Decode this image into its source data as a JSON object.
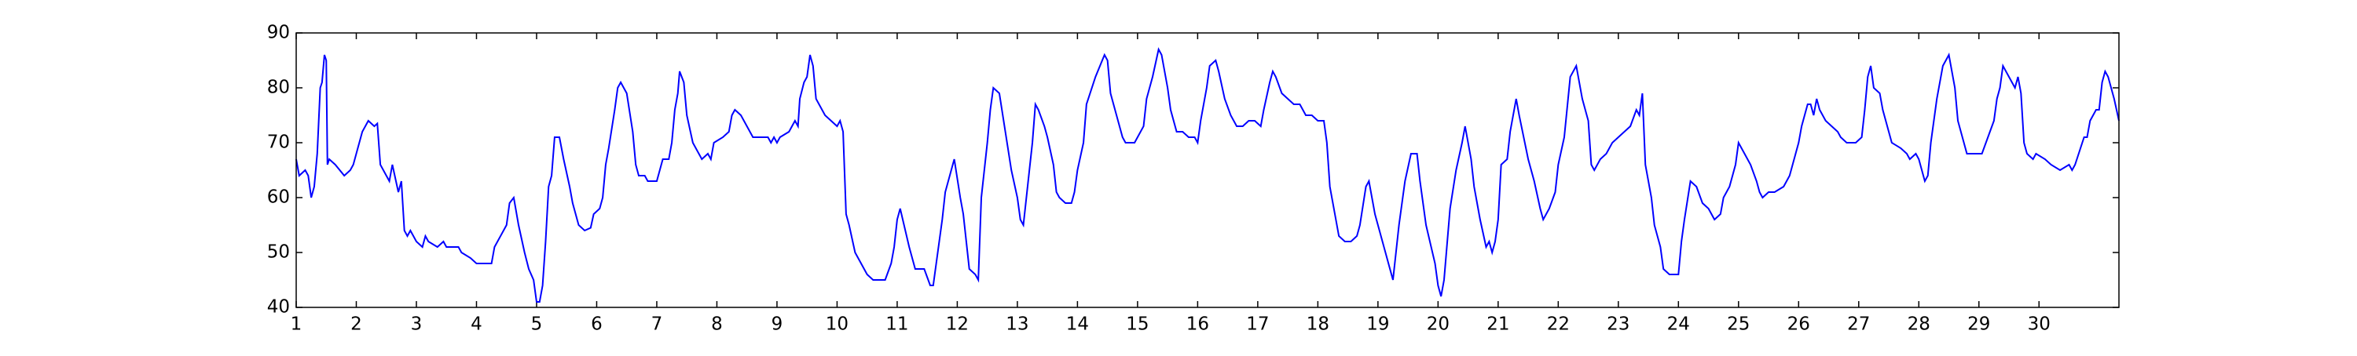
{
  "chart_data": {
    "type": "line",
    "color": "#0000ff",
    "xlim": [
      1,
      31.33
    ],
    "ylim": [
      40,
      90
    ],
    "xticks": [
      1,
      2,
      3,
      4,
      5,
      6,
      7,
      8,
      9,
      10,
      11,
      12,
      13,
      14,
      15,
      16,
      17,
      18,
      19,
      20,
      21,
      22,
      23,
      24,
      25,
      26,
      27,
      28,
      29,
      30
    ],
    "yticks": [
      40,
      50,
      60,
      70,
      80,
      90
    ],
    "x": [
      1.0,
      1.05,
      1.15,
      1.2,
      1.25,
      1.3,
      1.35,
      1.4,
      1.43,
      1.47,
      1.5,
      1.52,
      1.55,
      1.65,
      1.8,
      1.9,
      1.95,
      2.0,
      2.1,
      2.2,
      2.3,
      2.35,
      2.4,
      2.5,
      2.55,
      2.6,
      2.7,
      2.75,
      2.8,
      2.85,
      2.9,
      3.0,
      3.1,
      3.15,
      3.2,
      3.35,
      3.45,
      3.5,
      3.7,
      3.75,
      3.9,
      4.0,
      4.2,
      4.25,
      4.3,
      4.35,
      4.5,
      4.55,
      4.62,
      4.7,
      4.8,
      4.87,
      4.95,
      5.0,
      5.05,
      5.1,
      5.15,
      5.2,
      5.25,
      5.3,
      5.38,
      5.45,
      5.55,
      5.6,
      5.7,
      5.8,
      5.9,
      5.95,
      6.05,
      6.1,
      6.15,
      6.2,
      6.3,
      6.35,
      6.4,
      6.5,
      6.6,
      6.65,
      6.7,
      6.8,
      6.85,
      7.0,
      7.05,
      7.1,
      7.2,
      7.25,
      7.3,
      7.35,
      7.38,
      7.45,
      7.5,
      7.6,
      7.65,
      7.75,
      7.85,
      7.9,
      7.95,
      8.1,
      8.2,
      8.25,
      8.3,
      8.4,
      8.5,
      8.6,
      8.75,
      8.85,
      8.9,
      8.95,
      9.0,
      9.05,
      9.2,
      9.3,
      9.35,
      9.38,
      9.45,
      9.5,
      9.55,
      9.6,
      9.65,
      9.7,
      9.8,
      9.9,
      10.0,
      10.05,
      10.1,
      10.15,
      10.2,
      10.3,
      10.35,
      10.45,
      10.5,
      10.6,
      10.8,
      10.9,
      10.95,
      11.0,
      11.05,
      11.2,
      11.3,
      11.45,
      11.55,
      11.6,
      11.65,
      11.75,
      11.8,
      11.9,
      11.95,
      12.05,
      12.1,
      12.15,
      12.2,
      12.3,
      12.35,
      12.4,
      12.5,
      12.55,
      12.6,
      12.7,
      12.8,
      12.9,
      13.0,
      13.05,
      13.1,
      13.15,
      13.2,
      13.25,
      13.3,
      13.35,
      13.45,
      13.5,
      13.6,
      13.65,
      13.7,
      13.8,
      13.9,
      13.95,
      14.0,
      14.1,
      14.15,
      14.3,
      14.45,
      14.5,
      14.55,
      14.65,
      14.75,
      14.8,
      14.95,
      15.0,
      15.1,
      15.15,
      15.25,
      15.35,
      15.4,
      15.5,
      15.55,
      15.65,
      15.75,
      15.85,
      15.95,
      16.0,
      16.05,
      16.15,
      16.2,
      16.3,
      16.35,
      16.45,
      16.55,
      16.65,
      16.75,
      16.85,
      16.95,
      17.05,
      17.1,
      17.2,
      17.25,
      17.3,
      17.4,
      17.5,
      17.6,
      17.7,
      17.8,
      17.9,
      18.0,
      18.1,
      18.15,
      18.2,
      18.3,
      18.35,
      18.45,
      18.55,
      18.65,
      18.7,
      18.8,
      18.85,
      18.95,
      19.0,
      19.1,
      19.2,
      19.25,
      19.35,
      19.45,
      19.55,
      19.65,
      19.7,
      19.8,
      19.95,
      20.0,
      20.05,
      20.1,
      20.2,
      20.3,
      20.4,
      20.45,
      20.55,
      20.6,
      20.7,
      20.8,
      20.85,
      20.9,
      20.95,
      21.0,
      21.05,
      21.15,
      21.2,
      21.3,
      21.35,
      21.5,
      21.6,
      21.7,
      21.75,
      21.85,
      21.95,
      22.0,
      22.1,
      22.2,
      22.3,
      22.4,
      22.5,
      22.55,
      22.6,
      22.7,
      22.8,
      22.9,
      23.0,
      23.1,
      23.2,
      23.3,
      23.35,
      23.4,
      23.45,
      23.55,
      23.6,
      23.7,
      23.75,
      23.85,
      24.0,
      24.05,
      24.1,
      24.2,
      24.3,
      24.4,
      24.5,
      24.6,
      24.7,
      24.75,
      24.85,
      24.95,
      25.0,
      25.1,
      25.2,
      25.3,
      25.35,
      25.4,
      25.5,
      25.6,
      25.75,
      25.85,
      25.9,
      26.0,
      26.05,
      26.15,
      26.2,
      26.25,
      26.3,
      26.35,
      26.45,
      26.55,
      26.65,
      26.7,
      26.8,
      26.95,
      27.05,
      27.1,
      27.15,
      27.2,
      27.25,
      27.35,
      27.4,
      27.5,
      27.55,
      27.7,
      27.8,
      27.85,
      27.95,
      28.0,
      28.1,
      28.15,
      28.2,
      28.3,
      28.4,
      28.5,
      28.6,
      28.65,
      28.75,
      28.8,
      28.9,
      29.05,
      29.15,
      29.25,
      29.3,
      29.35,
      29.4,
      29.5,
      29.6,
      29.65,
      29.7,
      29.75,
      29.8,
      29.9,
      29.95,
      30.1,
      30.2,
      30.35,
      30.5,
      30.55,
      30.6,
      30.75,
      30.8,
      30.85,
      30.95,
      31.0,
      31.05,
      31.1,
      31.15,
      31.25,
      31.33
    ],
    "values": [
      67,
      64,
      65,
      64,
      60,
      62,
      68,
      80,
      81,
      86,
      85,
      66,
      67,
      66,
      64,
      65,
      66,
      68,
      72,
      74,
      73,
      73.5,
      66,
      64,
      63,
      66,
      61,
      63,
      54,
      53,
      54,
      52,
      51,
      53,
      52,
      51,
      52,
      51,
      51,
      50,
      49,
      48,
      48,
      48,
      51,
      52,
      55,
      59,
      60,
      55,
      50,
      47,
      45,
      41,
      41,
      44,
      52,
      62,
      64,
      71,
      71,
      67,
      62,
      59,
      55,
      54,
      54.5,
      57,
      58,
      60,
      66,
      69,
      76,
      80,
      81,
      79,
      72,
      66,
      64,
      64,
      63,
      63,
      65,
      67,
      67,
      70,
      76,
      79,
      83,
      81,
      75,
      70,
      69,
      67,
      68,
      67,
      70,
      71,
      72,
      75,
      76,
      75,
      73,
      71,
      71,
      71,
      70,
      71,
      70,
      71,
      72,
      74,
      73,
      78,
      81,
      82,
      86,
      84,
      78,
      77,
      75,
      74,
      73,
      74,
      72,
      57,
      55,
      50,
      49,
      47,
      46,
      45,
      45,
      48,
      51,
      56,
      58,
      51,
      47,
      47,
      44,
      44,
      48,
      56,
      61,
      65,
      67,
      60,
      57,
      52,
      47,
      46,
      45,
      60,
      70,
      76,
      80,
      79,
      72,
      65,
      60,
      56,
      55,
      60,
      65,
      70,
      77,
      76,
      73,
      71,
      66,
      61,
      60,
      59,
      59,
      61,
      65,
      70,
      77,
      82,
      86,
      85,
      79,
      75,
      71,
      70,
      70,
      71,
      73,
      78,
      82,
      87,
      86,
      80,
      76,
      72,
      72,
      71,
      71,
      70,
      74,
      80,
      84,
      85,
      83,
      78,
      75,
      73,
      73,
      74,
      74,
      73,
      76,
      81,
      83,
      82,
      79,
      78,
      77,
      77,
      75,
      75,
      74,
      74,
      70,
      62,
      56,
      53,
      52,
      52,
      53,
      55,
      62,
      63,
      57,
      55,
      51,
      47,
      45,
      55,
      63,
      68,
      68,
      63,
      55,
      48,
      44,
      42,
      45,
      58,
      65,
      70,
      73,
      67,
      62,
      56,
      51,
      52,
      50,
      52,
      56,
      66,
      67,
      72,
      78,
      75,
      67,
      63,
      58,
      56,
      58,
      61,
      66,
      71,
      82,
      84,
      78,
      74,
      66,
      65,
      67,
      68,
      70,
      71,
      72,
      73,
      76,
      75,
      79,
      66,
      60,
      55,
      51,
      47,
      46,
      46,
      52,
      56,
      63,
      62,
      59,
      58,
      56,
      57,
      60,
      62,
      66,
      70,
      68,
      66,
      63,
      61,
      60,
      61,
      61,
      62,
      64,
      66,
      70,
      73,
      77,
      77,
      75,
      78,
      76,
      74,
      73,
      72,
      71,
      70,
      70,
      71,
      76,
      82,
      84,
      80,
      79,
      76,
      72,
      70,
      69,
      68,
      67,
      68,
      67,
      63,
      64,
      70,
      78,
      84,
      86,
      80,
      74,
      70,
      68,
      68,
      68,
      71,
      74,
      78,
      80,
      84,
      82,
      80,
      82,
      79,
      70,
      68,
      67,
      68,
      67,
      66,
      65,
      66,
      65,
      66,
      71,
      71,
      74,
      76,
      76,
      81,
      83,
      82,
      78,
      74
    ]
  }
}
